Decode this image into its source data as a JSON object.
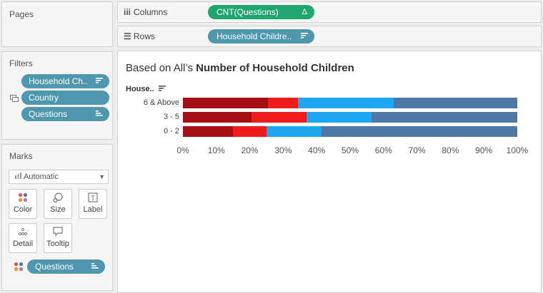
{
  "pages": {
    "title": "Pages"
  },
  "filters": {
    "title": "Filters",
    "items": [
      {
        "label": "Household Ch..",
        "icon": "sort-icon"
      },
      {
        "label": "Country",
        "icon": ""
      },
      {
        "label": "Questions",
        "icon": "bar-sort-icon"
      }
    ]
  },
  "marks": {
    "title": "Marks",
    "type": "Automatic",
    "buttons": [
      "Color",
      "Size",
      "Label",
      "Detail",
      "Tooltip"
    ],
    "pill": "Questions"
  },
  "columns": {
    "label": "Columns",
    "pill": "CNT(Questions)",
    "pill_icon": "Δ"
  },
  "rows": {
    "label": "Rows",
    "pill": "Household Childre.."
  },
  "viz": {
    "title_prefix": "Based on All’s ",
    "title_bold": "Number of Household Children",
    "row_header": "House.."
  },
  "chart_data": {
    "type": "bar",
    "stacked": "percent",
    "orientation": "horizontal",
    "categories": [
      "6 & Above",
      "3 - 5",
      "0 - 2"
    ],
    "series": [
      {
        "color": "#a50f15",
        "values": [
          25.5,
          20.5,
          15
        ]
      },
      {
        "color": "#ee1c1c",
        "values": [
          9,
          16.5,
          10
        ]
      },
      {
        "color": "#1fa6f2",
        "values": [
          28.5,
          19.5,
          16.5
        ]
      },
      {
        "color": "#4e79a7",
        "values": [
          37,
          43.5,
          58.5
        ]
      }
    ],
    "xticks": [
      "0%",
      "10%",
      "20%",
      "30%",
      "40%",
      "50%",
      "60%",
      "70%",
      "80%",
      "90%",
      "100%"
    ],
    "xlim": [
      0,
      100
    ]
  }
}
